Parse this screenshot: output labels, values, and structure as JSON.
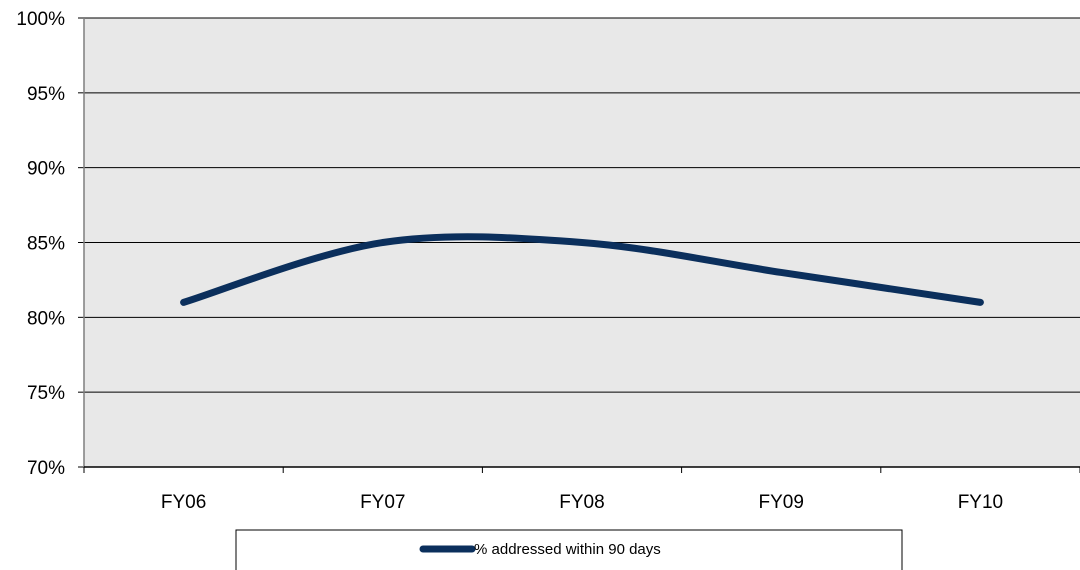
{
  "chart_data": {
    "type": "line",
    "title": "",
    "xlabel": "",
    "ylabel": "",
    "categories": [
      "FY06",
      "FY07",
      "FY08",
      "FY09",
      "FY10"
    ],
    "series": [
      {
        "name": "% addressed within 90 days",
        "values": [
          81,
          85,
          85,
          83,
          81
        ],
        "color": "#0b2f5c"
      }
    ],
    "ylim": [
      70,
      100
    ],
    "yticks": [
      "70%",
      "75%",
      "80%",
      "85%",
      "90%",
      "95%",
      "100%"
    ],
    "grid": true,
    "plot_background": "#e8e8e8",
    "legend_position": "bottom-center"
  }
}
